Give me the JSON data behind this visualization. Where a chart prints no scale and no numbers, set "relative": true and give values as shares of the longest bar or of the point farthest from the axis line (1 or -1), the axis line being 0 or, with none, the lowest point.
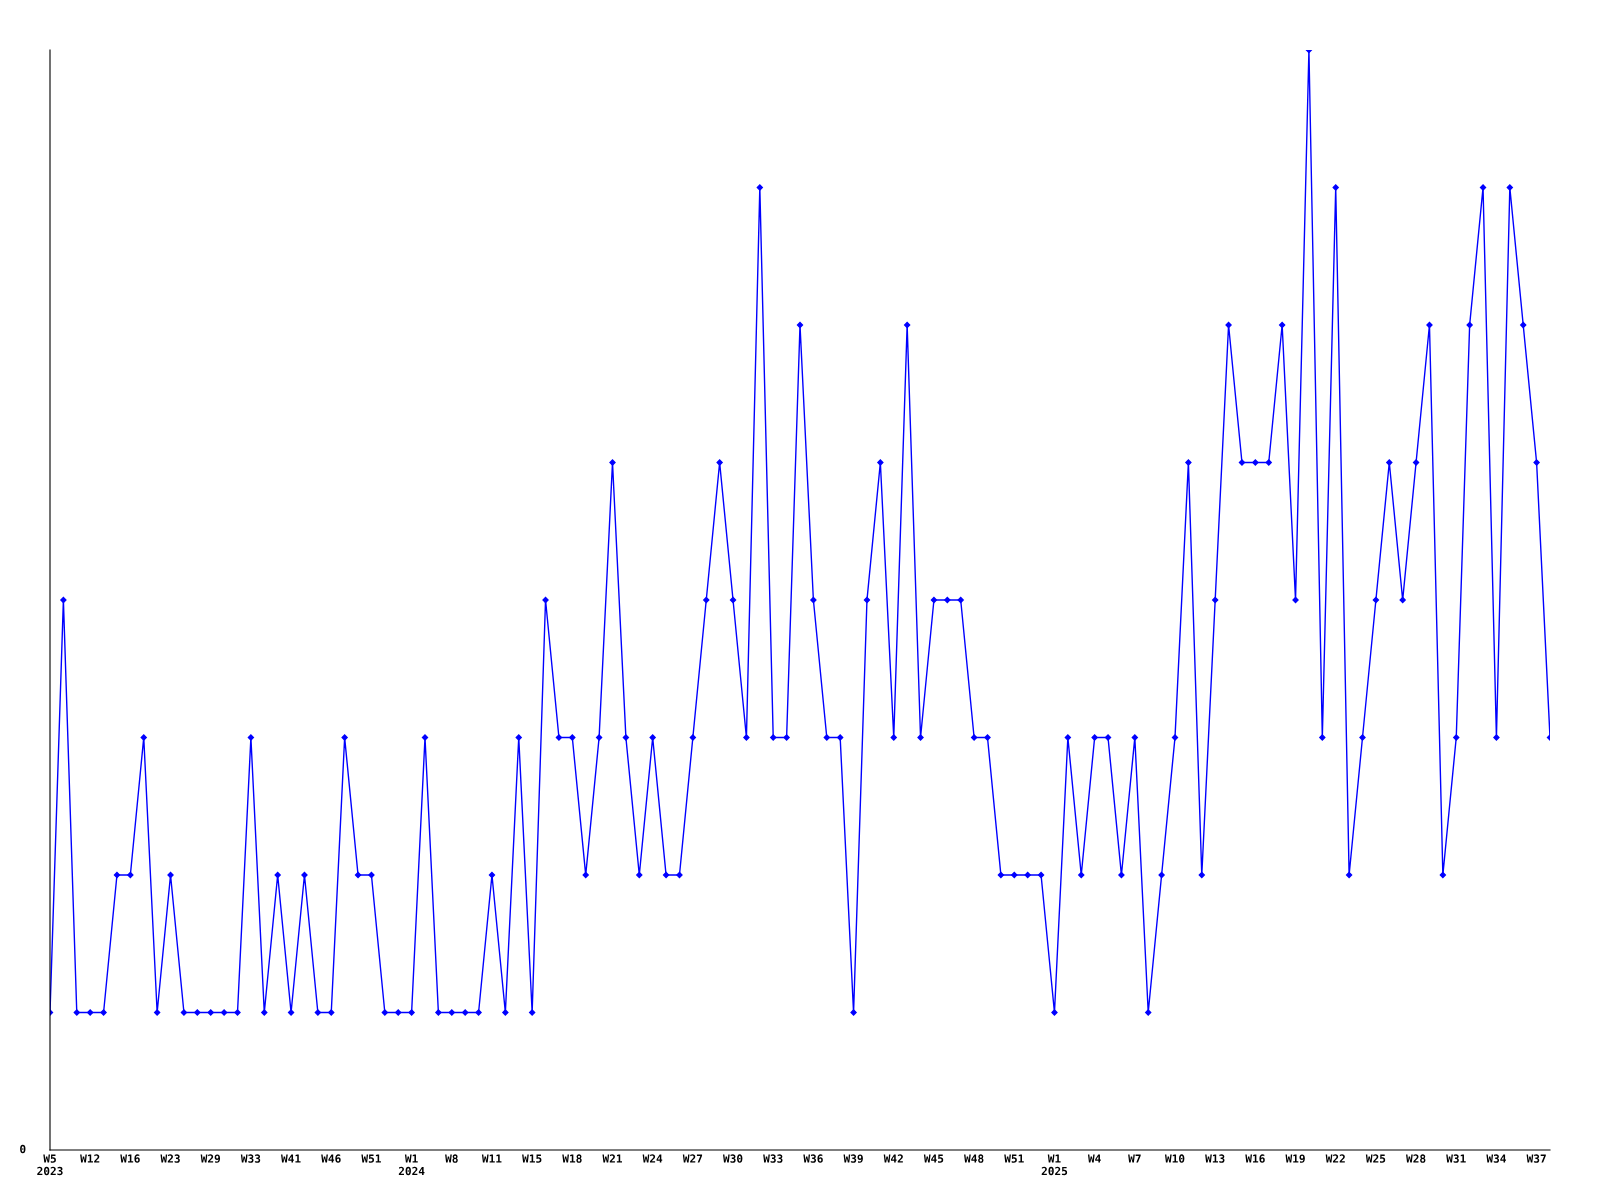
{
  "chart_data": {
    "type": "line",
    "relative": true,
    "marker": "diamond",
    "line_style": "solid",
    "grid": false,
    "legend": false,
    "annotations": [
      "0"
    ],
    "categories": [
      "W5\n2023",
      null,
      null,
      "W12",
      null,
      null,
      "W16",
      null,
      null,
      "W23",
      null,
      null,
      "W29",
      null,
      null,
      "W33",
      null,
      null,
      "W41",
      null,
      null,
      "W46",
      null,
      null,
      "W51",
      null,
      null,
      "W1\n2024",
      null,
      null,
      "W8",
      null,
      null,
      "W11",
      null,
      null,
      "W15",
      null,
      null,
      "W18",
      null,
      null,
      "W21",
      null,
      null,
      "W24",
      null,
      null,
      "W27",
      null,
      null,
      "W30",
      null,
      null,
      "W33",
      null,
      null,
      "W36",
      null,
      null,
      "W39",
      null,
      null,
      "W42",
      null,
      null,
      "W45",
      null,
      null,
      "W48",
      null,
      null,
      "W51",
      null,
      null,
      "W1\n2025",
      null,
      null,
      "W4",
      null,
      null,
      "W7",
      null,
      null,
      "W10",
      null,
      null,
      "W13",
      null,
      null,
      "W16",
      null,
      null,
      "W19",
      null,
      null,
      "W22",
      null,
      null,
      "W25",
      null,
      null,
      "W28",
      null,
      null,
      "W31",
      null,
      null,
      "W34",
      null,
      null,
      "W37",
      null
    ],
    "series": [
      {
        "color": "#0000ff",
        "values": [
          0.125,
          0.5,
          0.125,
          0.125,
          0.125,
          0.25,
          0.25,
          0.375,
          0.125,
          0.25,
          0.125,
          0.125,
          0.125,
          0.125,
          0.125,
          0.375,
          0.125,
          0.25,
          0.125,
          0.25,
          0.125,
          0.125,
          0.375,
          0.25,
          0.25,
          0.125,
          0.125,
          0.125,
          0.375,
          0.125,
          0.125,
          0.125,
          0.125,
          0.25,
          0.125,
          0.375,
          0.125,
          0.5,
          0.375,
          0.375,
          0.25,
          0.375,
          0.625,
          0.375,
          0.25,
          0.375,
          0.25,
          0.25,
          0.375,
          0.5,
          0.625,
          0.5,
          0.375,
          0.875,
          0.375,
          0.375,
          0.75,
          0.5,
          0.375,
          0.375,
          0.125,
          0.5,
          0.625,
          0.375,
          0.75,
          0.375,
          0.5,
          0.5,
          0.5,
          0.375,
          0.375,
          0.25,
          0.25,
          0.25,
          0.25,
          0.125,
          0.375,
          0.25,
          0.375,
          0.375,
          0.25,
          0.375,
          0.125,
          0.25,
          0.375,
          0.625,
          0.25,
          0.5,
          0.75,
          0.625,
          0.625,
          0.625,
          0.75,
          0.5,
          1,
          0.375,
          0.875,
          0.25,
          0.375,
          0.5,
          0.625,
          0.5,
          0.625,
          0.75,
          0.25,
          0.375,
          0.75,
          0.875,
          0.375,
          0.875,
          0.75,
          0.625,
          0.375
        ]
      }
    ]
  }
}
